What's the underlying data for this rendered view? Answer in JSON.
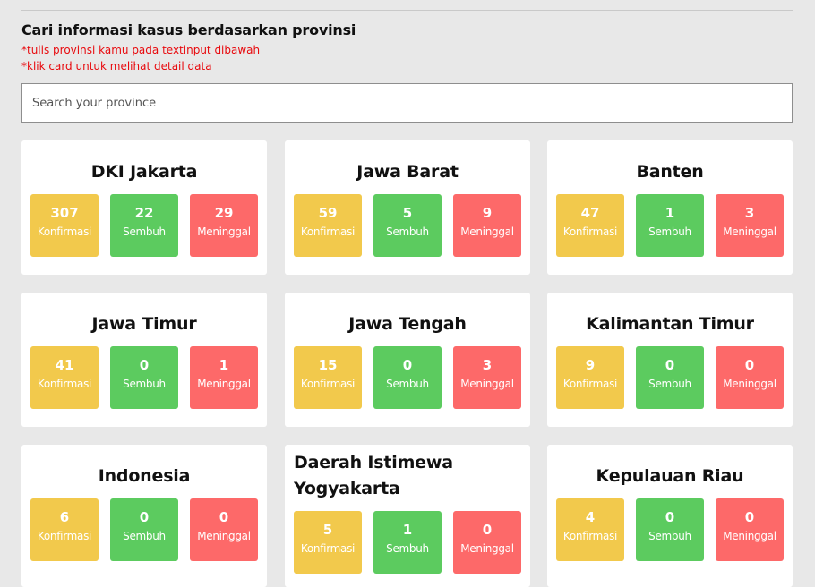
{
  "header": {
    "title": "Cari informasi kasus berdasarkan provinsi",
    "note1": "*tulis provinsi kamu pada textinput dibawah",
    "note2": "*klik card untuk melihat detail data"
  },
  "search": {
    "placeholder": "Search your province",
    "value": ""
  },
  "labels": {
    "confirmed": "Konfirmasi",
    "recovered": "Sembuh",
    "died": "Meninggal"
  },
  "colors": {
    "confirmed": "#f2c94c",
    "recovered": "#5ccb5f",
    "died": "#fd6969",
    "note_red": "#e8090d"
  },
  "cards": [
    {
      "province": "DKI Jakarta",
      "confirmed": "307",
      "recovered": "22",
      "died": "29"
    },
    {
      "province": "Jawa Barat",
      "confirmed": "59",
      "recovered": "5",
      "died": "9"
    },
    {
      "province": "Banten",
      "confirmed": "47",
      "recovered": "1",
      "died": "3"
    },
    {
      "province": "Jawa Timur",
      "confirmed": "41",
      "recovered": "0",
      "died": "1"
    },
    {
      "province": "Jawa Tengah",
      "confirmed": "15",
      "recovered": "0",
      "died": "3"
    },
    {
      "province": "Kalimantan Timur",
      "confirmed": "9",
      "recovered": "0",
      "died": "0"
    },
    {
      "province": "Indonesia",
      "confirmed": "6",
      "recovered": "0",
      "died": "0"
    },
    {
      "province": "Daerah Istimewa Yogyakarta",
      "confirmed": "5",
      "recovered": "1",
      "died": "0"
    },
    {
      "province": "Kepulauan Riau",
      "confirmed": "4",
      "recovered": "0",
      "died": "0"
    }
  ]
}
